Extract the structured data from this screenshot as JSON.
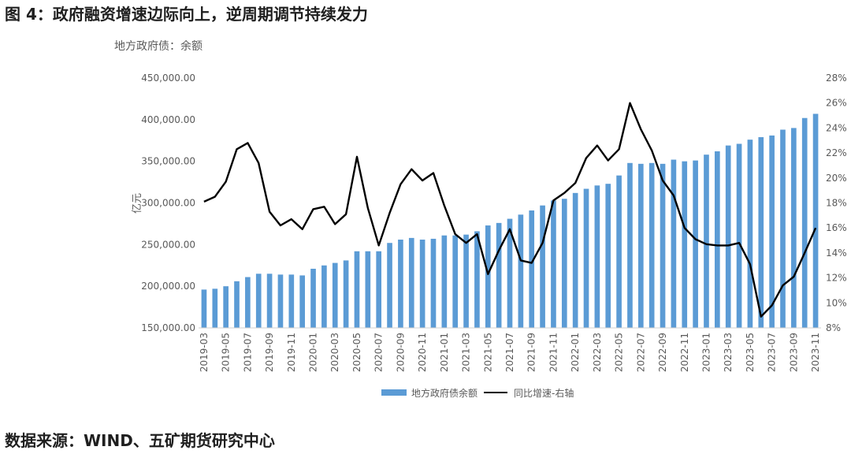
{
  "figure_title": "图 4：政府融资增速边际向上，逆周期调节持续发力",
  "source": "数据来源：WIND、五矿期货研究中心",
  "chart_data": {
    "type": "bar+line",
    "subtitle": "地方政府债：余额",
    "ylabel": "亿元",
    "ylim_left": [
      150000,
      450000
    ],
    "ylim_right": [
      8,
      28
    ],
    "yticks_left": [
      "150,000.00",
      "200,000.00",
      "250,000.00",
      "300,000.00",
      "350,000.00",
      "400,000.00",
      "450,000.00"
    ],
    "yticks_right": [
      "8%",
      "10%",
      "12%",
      "14%",
      "16%",
      "18%",
      "20%",
      "22%",
      "24%",
      "26%",
      "28%"
    ],
    "months": [
      "2019-03",
      "2019-04",
      "2019-05",
      "2019-06",
      "2019-07",
      "2019-08",
      "2019-09",
      "2019-10",
      "2019-11",
      "2019-12",
      "2020-01",
      "2020-02",
      "2020-03",
      "2020-04",
      "2020-05",
      "2020-06",
      "2020-07",
      "2020-08",
      "2020-09",
      "2020-10",
      "2020-11",
      "2020-12",
      "2021-01",
      "2021-02",
      "2021-03",
      "2021-04",
      "2021-05",
      "2021-06",
      "2021-07",
      "2021-08",
      "2021-09",
      "2021-10",
      "2021-11",
      "2021-12",
      "2022-01",
      "2022-02",
      "2022-03",
      "2022-04",
      "2022-05",
      "2022-06",
      "2022-07",
      "2022-08",
      "2022-09",
      "2022-10",
      "2022-11",
      "2022-12",
      "2023-01",
      "2023-02",
      "2023-03",
      "2023-04",
      "2023-05",
      "2023-06",
      "2023-07",
      "2023-08",
      "2023-09",
      "2023-10",
      "2023-11"
    ],
    "x_tick_labels": [
      "2019-03",
      "2019-05",
      "2019-07",
      "2019-09",
      "2019-11",
      "2020-01",
      "2020-03",
      "2020-05",
      "2020-07",
      "2020-09",
      "2020-11",
      "2021-01",
      "2021-03",
      "2021-05",
      "2021-07",
      "2021-09",
      "2021-11",
      "2022-01",
      "2022-03",
      "2022-05",
      "2022-07",
      "2022-09",
      "2022-11",
      "2023-01",
      "2023-03",
      "2023-05",
      "2023-07",
      "2023-09",
      "2023-11"
    ],
    "series": [
      {
        "name": "地方政府债余额",
        "type": "bar",
        "axis": "left",
        "color": "#5b9bd5",
        "values": [
          196000,
          197000,
          200000,
          206000,
          211000,
          215000,
          215000,
          214000,
          214000,
          213000,
          221000,
          225000,
          228000,
          231000,
          242000,
          242000,
          242000,
          252000,
          256000,
          258000,
          256000,
          257000,
          261000,
          261000,
          262000,
          266000,
          273000,
          276000,
          281000,
          286000,
          291000,
          297000,
          303000,
          305000,
          312000,
          317000,
          321000,
          323000,
          333000,
          348000,
          347000,
          348000,
          347000,
          352000,
          350000,
          351000,
          358000,
          362000,
          369000,
          371000,
          376000,
          379000,
          381000,
          388000,
          390000,
          402000,
          407000
        ]
      },
      {
        "name": "同比增速-右轴",
        "type": "line",
        "axis": "right",
        "color": "#000000",
        "values": [
          18.1,
          18.5,
          19.7,
          22.3,
          22.8,
          21.2,
          17.3,
          16.2,
          16.7,
          15.9,
          17.5,
          17.7,
          16.3,
          17.1,
          21.7,
          17.6,
          14.6,
          17.2,
          19.5,
          20.7,
          19.8,
          20.4,
          17.8,
          15.5,
          14.8,
          15.5,
          12.3,
          14.2,
          15.9,
          13.4,
          13.2,
          14.8,
          18.2,
          18.8,
          19.6,
          21.6,
          22.6,
          21.4,
          22.3,
          26.0,
          23.9,
          22.2,
          19.8,
          18.6,
          16.0,
          15.1,
          14.7,
          14.6,
          14.6,
          14.8,
          13.1,
          8.9,
          9.8,
          11.4,
          12.1,
          14.0,
          16.0
        ]
      }
    ]
  }
}
